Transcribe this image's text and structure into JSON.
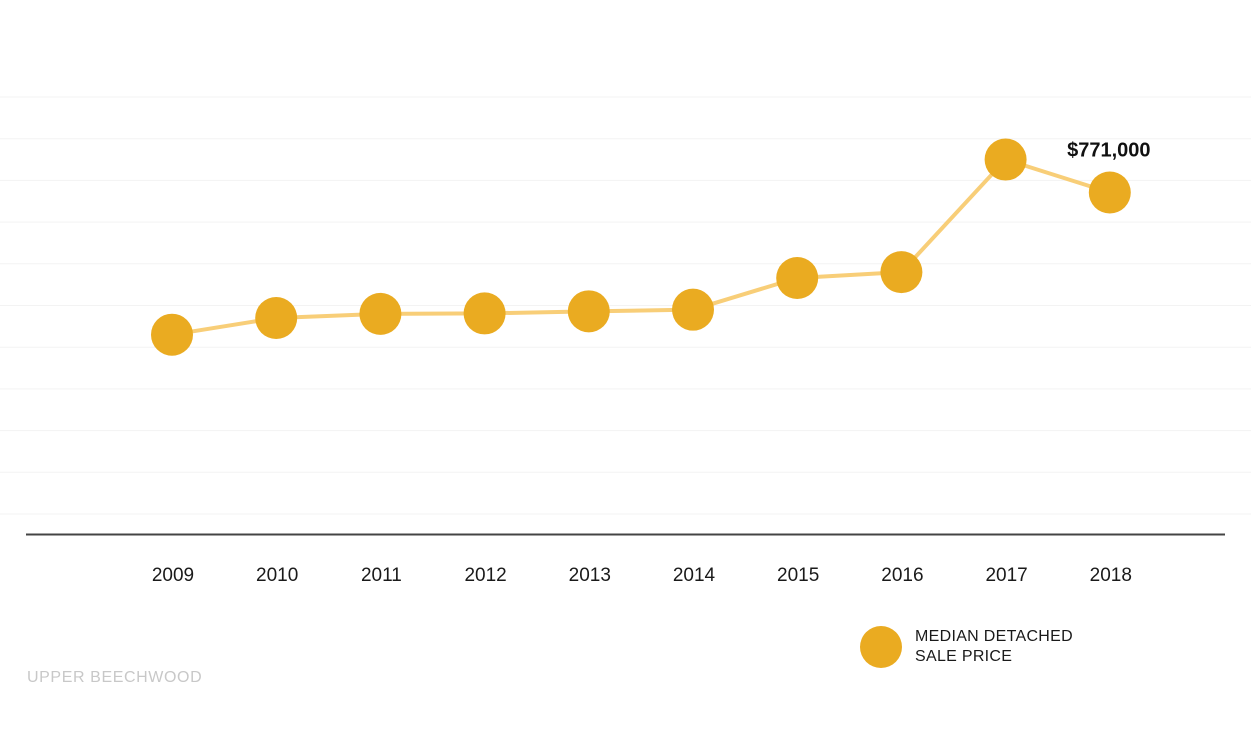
{
  "chart_data": {
    "type": "line",
    "categories": [
      "2009",
      "2010",
      "2011",
      "2012",
      "2013",
      "2014",
      "2015",
      "2016",
      "2017",
      "2018"
    ],
    "series": [
      {
        "name": "MEDIAN DETACHED SALE PRICE",
        "values": [
          430000,
          470000,
          480000,
          481000,
          486000,
          490000,
          566000,
          580000,
          850000,
          771000
        ]
      }
    ],
    "ylim": [
      0,
      1100000
    ],
    "gridlines": [
      100000,
      200000,
      300000,
      400000,
      500000,
      600000,
      700000,
      800000,
      900000,
      1000000
    ],
    "annotations": [
      {
        "category": "2018",
        "text": "$771,000"
      }
    ],
    "grid": true,
    "colors": {
      "marker": "#EAAB21",
      "line": "#F8CE78",
      "gridline": "#f3f3f3",
      "axis": "#444444"
    }
  },
  "legend": {
    "line1": "MEDIAN DETACHED",
    "line2": "SALE PRICE"
  },
  "footer": {
    "neighbourhood": "UPPER BEECHWOOD"
  }
}
